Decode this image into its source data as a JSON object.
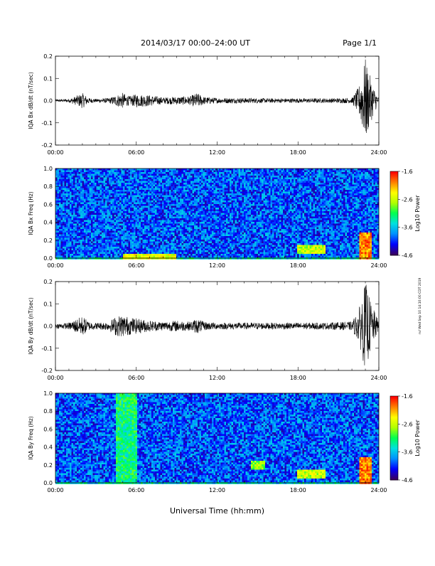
{
  "header": {
    "title": "2014/03/17  00:00–24:00 UT",
    "page": "Page 1/1"
  },
  "side_note": "rvl Wed Sep 10 14:10:00 CDT 2019",
  "colors": {
    "trace": "#000000",
    "colormap": [
      "#3a0060",
      "#0000ff",
      "#0090ff",
      "#00e0e0",
      "#00ff50",
      "#b0ff00",
      "#ffff00",
      "#ff8000",
      "#ff0000"
    ]
  },
  "chart_data": [
    {
      "type": "line",
      "title": "",
      "ylabel": "IQA Bx dB/dt (nT/sec)",
      "xlabel": "",
      "xlim": [
        0,
        24
      ],
      "ylim": [
        -0.2,
        0.2
      ],
      "xticks": [
        "00:00",
        "06:00",
        "12:00",
        "18:00",
        "24:00"
      ],
      "yticks": [
        "0.2",
        "0.1",
        "0.0",
        "-0.1",
        "-0.2"
      ],
      "series": [
        {
          "x": [
            0,
            1,
            1.5,
            2,
            2.5,
            3,
            4,
            4.5,
            5,
            5.5,
            6,
            7,
            8,
            9,
            10,
            10.5,
            11,
            12,
            14,
            16,
            18,
            20,
            22,
            22.5,
            23,
            23.5,
            24
          ],
          "amplitude": [
            0.005,
            0.008,
            0.02,
            0.035,
            0.012,
            0.008,
            0.012,
            0.025,
            0.035,
            0.02,
            0.03,
            0.025,
            0.015,
            0.018,
            0.02,
            0.035,
            0.018,
            0.012,
            0.012,
            0.01,
            0.01,
            0.01,
            0.012,
            0.06,
            0.19,
            0.08,
            0.01
          ]
        }
      ]
    },
    {
      "type": "heatmap",
      "title": "",
      "ylabel": "IQA Bx Freq (Hz)",
      "xlabel": "",
      "xlim": [
        0,
        24
      ],
      "ylim": [
        0,
        1
      ],
      "xticks": [
        "00:00",
        "06:00",
        "12:00",
        "18:00",
        "24:00"
      ],
      "yticks": [
        "1.0",
        "0.8",
        "0.6",
        "0.4",
        "0.2",
        "0.0"
      ],
      "colorbar": {
        "label": "Log10 Power",
        "range": [
          -4.6,
          -1.6
        ],
        "ticks": [
          "-1.6",
          "-2.6",
          "-3.6",
          "-4.6"
        ]
      },
      "features": [
        {
          "time_h": [
            5,
            9
          ],
          "freq_hz": [
            0,
            0.05
          ],
          "log_power": -2.5
        },
        {
          "time_h": [
            18,
            20
          ],
          "freq_hz": [
            0.05,
            0.15
          ],
          "log_power": -2.6
        },
        {
          "time_h": [
            22.5,
            23.5
          ],
          "freq_hz": [
            0,
            0.3
          ],
          "log_power": -2.0
        }
      ]
    },
    {
      "type": "line",
      "title": "",
      "ylabel": "IQA By dB/dt (nT/sec)",
      "xlabel": "",
      "xlim": [
        0,
        24
      ],
      "ylim": [
        -0.2,
        0.2
      ],
      "xticks": [
        "00:00",
        "06:00",
        "12:00",
        "18:00",
        "24:00"
      ],
      "yticks": [
        "0.2",
        "0.1",
        "0.0",
        "-0.1",
        "-0.2"
      ],
      "series": [
        {
          "x": [
            0,
            1,
            1.5,
            2,
            2.5,
            3,
            4,
            4.5,
            5,
            5.5,
            6,
            7,
            8,
            9,
            10,
            10.5,
            11,
            12,
            14,
            16,
            18,
            20,
            22,
            22.5,
            23,
            23.5,
            24
          ],
          "amplitude": [
            0.01,
            0.015,
            0.03,
            0.045,
            0.02,
            0.015,
            0.02,
            0.045,
            0.05,
            0.04,
            0.035,
            0.025,
            0.02,
            0.025,
            0.02,
            0.035,
            0.02,
            0.015,
            0.015,
            0.015,
            0.015,
            0.015,
            0.02,
            0.07,
            0.2,
            0.09,
            0.02
          ]
        }
      ]
    },
    {
      "type": "heatmap",
      "title": "",
      "ylabel": "IQA By Freq (Hz)",
      "xlabel": "Universal Time (hh:mm)",
      "xlim": [
        0,
        24
      ],
      "ylim": [
        0,
        1
      ],
      "xticks": [
        "00:00",
        "06:00",
        "12:00",
        "18:00",
        "24:00"
      ],
      "yticks": [
        "1.0",
        "0.8",
        "0.6",
        "0.4",
        "0.2",
        "0.0"
      ],
      "colorbar": {
        "label": "Log10 Power",
        "range": [
          -4.6,
          -1.6
        ],
        "ticks": [
          "-1.6",
          "-2.6",
          "-3.6",
          "-4.6"
        ]
      },
      "features": [
        {
          "time_h": [
            4.5,
            6
          ],
          "freq_hz": [
            0,
            1.0
          ],
          "log_power": -3.2
        },
        {
          "time_h": [
            14.5,
            15.5
          ],
          "freq_hz": [
            0.15,
            0.25
          ],
          "log_power": -2.8
        },
        {
          "time_h": [
            18,
            20
          ],
          "freq_hz": [
            0.05,
            0.15
          ],
          "log_power": -2.6
        },
        {
          "time_h": [
            22.5,
            23.5
          ],
          "freq_hz": [
            0,
            0.3
          ],
          "log_power": -2.0
        }
      ]
    }
  ]
}
